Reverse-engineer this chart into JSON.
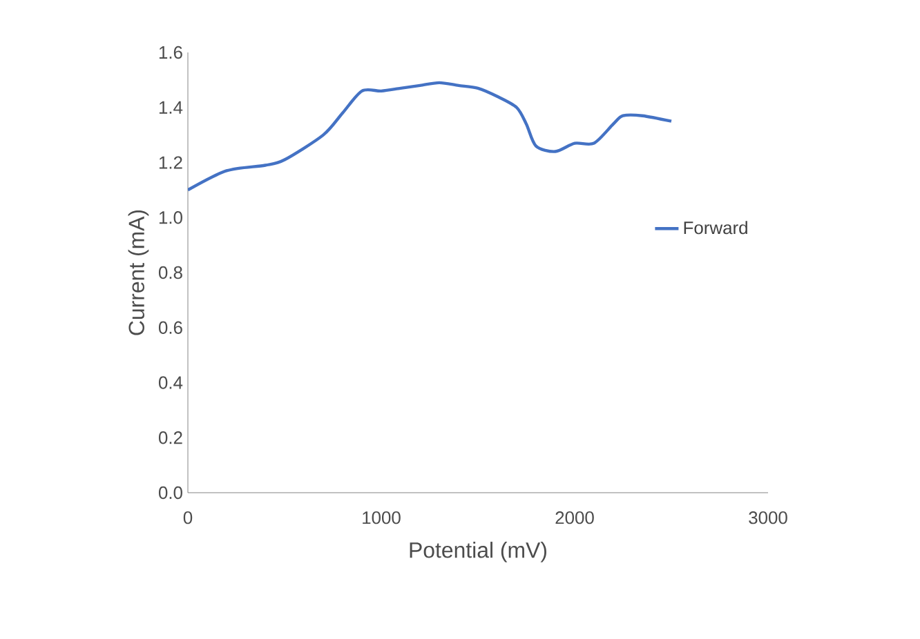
{
  "chart_data": {
    "type": "line",
    "xlabel": "Potential (mV)",
    "ylabel": "Current (mA)",
    "xlim": [
      0,
      3000
    ],
    "xticks": [
      0,
      1000,
      2000,
      3000
    ],
    "ylim": [
      0,
      1.6
    ],
    "yticks": [
      {
        "value": 0,
        "label": "0.0"
      },
      {
        "value": 0.2,
        "label": "0.2"
      },
      {
        "value": 0.4,
        "label": "0.4"
      },
      {
        "value": 0.6,
        "label": "0.6"
      },
      {
        "value": 0.8,
        "label": "0.8"
      },
      {
        "value": 1.0,
        "label": "1.0"
      },
      {
        "value": 1.2,
        "label": "1.2"
      },
      {
        "value": 1.4,
        "label": "1.4"
      },
      {
        "value": 1.6,
        "label": "1.6"
      }
    ],
    "x": [
      0,
      200,
      400,
      500,
      700,
      800,
      900,
      1000,
      1100,
      1200,
      1300,
      1400,
      1500,
      1600,
      1700,
      1750,
      1800,
      1900,
      2000,
      2100,
      2200,
      2250,
      2350,
      2500
    ],
    "series": [
      {
        "name": "Forward",
        "color": "#4472c4",
        "values": [
          1.1,
          1.17,
          1.19,
          1.21,
          1.3,
          1.38,
          1.46,
          1.46,
          1.47,
          1.48,
          1.49,
          1.48,
          1.47,
          1.44,
          1.4,
          1.34,
          1.26,
          1.24,
          1.27,
          1.27,
          1.34,
          1.37,
          1.37,
          1.35
        ]
      }
    ],
    "legend": "right",
    "grid": false,
    "marker": "none",
    "line_style": "solid"
  }
}
